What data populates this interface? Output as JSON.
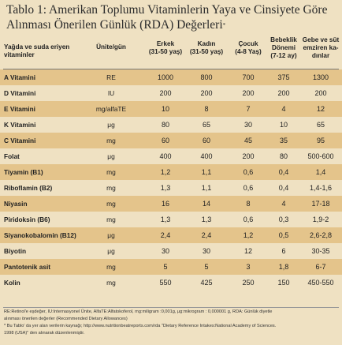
{
  "title": {
    "line1": "Tablo 1: Amerikan Toplumu Vitaminlerin Yaya ve Cinsiyete Göre",
    "line2": "Alınması Önerilen Günlük (RDA) Değerleri",
    "mark": "*"
  },
  "header": {
    "name": "Yağda ve suda eriyen vitaminler",
    "unit": "Ünite/gün",
    "col0_a": "Erkek",
    "col0_b": "(31-50 yaş)",
    "col1_a": "Kadın",
    "col1_b": "(31-50 yaş)",
    "col2_a": "Çocuk",
    "col2_b": "(4-8 Yaş)",
    "col3_a": "Bebeklik",
    "col3_b": "Dönemi",
    "col3_c": "(7-12 ay)",
    "col4_a": "Gebe ve süt",
    "col4_b": "emziren ka-",
    "col4_c": "dınlar"
  },
  "rows": [
    {
      "name": "A Vitamini",
      "unit": "RE",
      "values": [
        "1000",
        "800",
        "700",
        "375",
        "1300"
      ]
    },
    {
      "name": "D Vitamini",
      "unit": "IU",
      "values": [
        "200",
        "200",
        "200",
        "200",
        "200"
      ]
    },
    {
      "name": "E Vitamini",
      "unit": "mg/alfaTE",
      "values": [
        "10",
        "8",
        "7",
        "4",
        "12"
      ]
    },
    {
      "name": "K Vitamini",
      "unit": "μg",
      "values": [
        "80",
        "65",
        "30",
        "10",
        "65"
      ]
    },
    {
      "name": "C Vitamini",
      "unit": "mg",
      "values": [
        "60",
        "60",
        "45",
        "35",
        "95"
      ]
    },
    {
      "name": "Folat",
      "unit": "μg",
      "values": [
        "400",
        "400",
        "200",
        "80",
        "500-600"
      ]
    },
    {
      "name": "Tiyamin (B1)",
      "unit": "mg",
      "values": [
        "1,2",
        "1,1",
        "0,6",
        "0,4",
        "1,4"
      ]
    },
    {
      "name": "Riboflamin (B2)",
      "unit": "mg",
      "values": [
        "1,3",
        "1,1",
        "0,6",
        "0,4",
        "1,4-1,6"
      ]
    },
    {
      "name": "Niyasin",
      "unit": "mg",
      "values": [
        "16",
        "14",
        "8",
        "4",
        "17-18"
      ]
    },
    {
      "name": "Piridoksin (B6)",
      "unit": "mg",
      "values": [
        "1,3",
        "1,3",
        "0,6",
        "0,3",
        "1,9-2"
      ]
    },
    {
      "name": "Siyanokobalomin (B12)",
      "unit": "μg",
      "values": [
        "2,4",
        "2,4",
        "1,2",
        "0,5",
        "2,6-2,8"
      ]
    },
    {
      "name": "Biyotin",
      "unit": "μg",
      "values": [
        "30",
        "30",
        "12",
        "6",
        "30-35"
      ]
    },
    {
      "name": "Pantotenik asit",
      "unit": "mg",
      "values": [
        "5",
        "5",
        "3",
        "1,8",
        "6-7"
      ]
    },
    {
      "name": "Kolin",
      "unit": "mg",
      "values": [
        "550",
        "425",
        "250",
        "150",
        "450-550"
      ]
    }
  ],
  "footnote": {
    "line1": "RE:Retinol'e eşdeğer, IU:Internasyonel Ünite, AlfaTE:Alfatokoferol, mg:miligram :0,001g, μg:mikrogram : 0,000001 g, RDA: Günlük diyetle",
    "line2": "alınması önerilen değerler (Recommended Dietary Allowances)",
    "line3": "* Bu Tablo' da yer alan verilerin kaynağı; http://www.nutritionbeatreports.com/rda \"Dietary Reference Intakes:National Academy of Sciences.",
    "line4": "1998 (USA)\" den alınarak düzenlenmiştir."
  }
}
